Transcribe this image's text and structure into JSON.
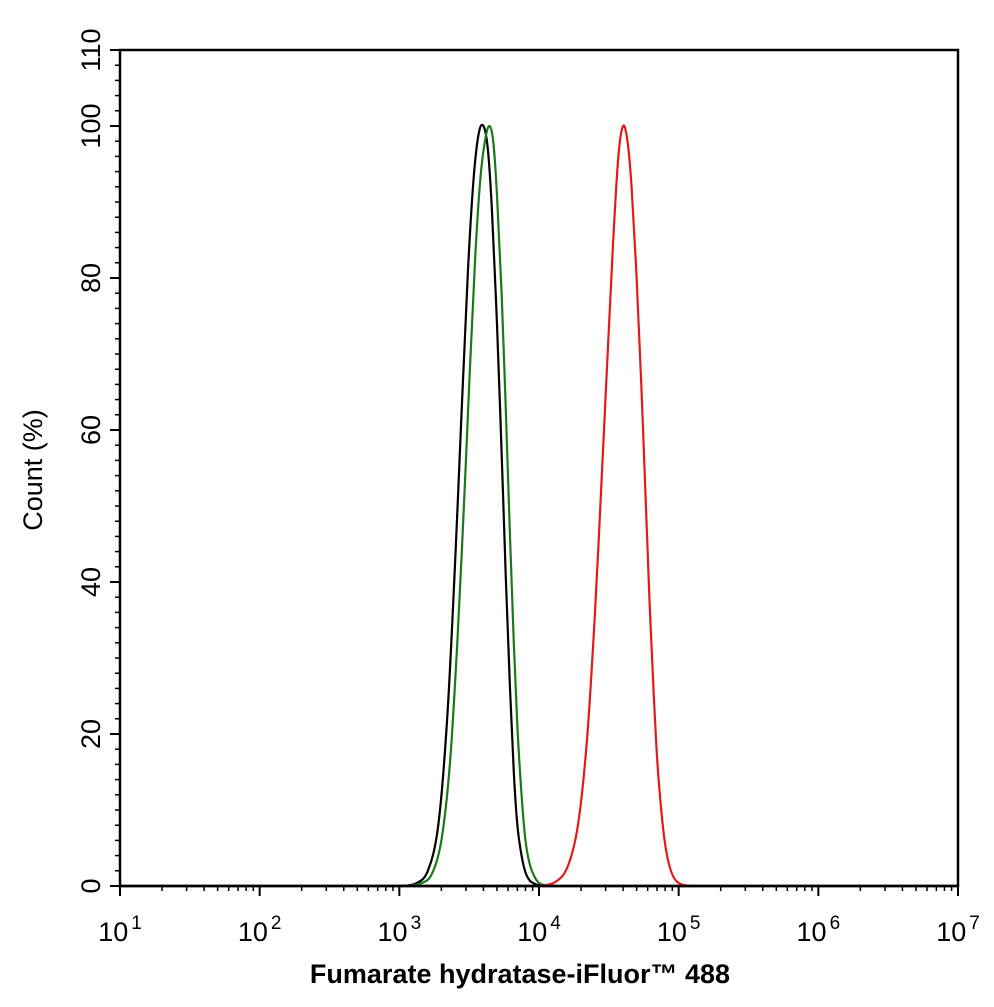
{
  "chart_data": {
    "type": "line",
    "title": "",
    "xlabel": "Fumarate hydratase-iFluor™ 488",
    "ylabel": "Count  (%)",
    "x_scale": "log",
    "xlim": [
      10,
      10000000
    ],
    "ylim": [
      0,
      110
    ],
    "x_tick_labels": [
      {
        "base": "10",
        "exp": "1"
      },
      {
        "base": "10",
        "exp": "2"
      },
      {
        "base": "10",
        "exp": "3"
      },
      {
        "base": "10",
        "exp": "4"
      },
      {
        "base": "10",
        "exp": "5"
      },
      {
        "base": "10",
        "exp": "6"
      },
      {
        "base": "10",
        "exp": "7"
      }
    ],
    "y_ticks": [
      "0",
      "20",
      "40",
      "60",
      "80",
      "100",
      "110"
    ],
    "grid": false,
    "legend": "none",
    "series": [
      {
        "color": "#000000",
        "x": [
          1000,
          1300,
          1600,
          1900,
          2200,
          2500,
          2800,
          3100,
          3400,
          3700,
          4000,
          4300,
          4600,
          5000,
          5400,
          5800,
          6200,
          6600,
          7000,
          7500,
          8000,
          8600,
          9300,
          10000,
          11000
        ],
        "y": [
          0,
          0.3,
          2,
          8,
          22,
          42,
          63,
          81,
          93,
          99,
          100,
          97,
          89,
          74,
          57,
          40,
          26,
          15,
          8,
          4,
          1.8,
          0.7,
          0.3,
          0.1,
          0
        ]
      },
      {
        "color": "#1a7a1a",
        "x": [
          1100,
          1400,
          1700,
          2000,
          2300,
          2600,
          2900,
          3200,
          3500,
          3800,
          4100,
          4400,
          4700,
          5000,
          5400,
          5800,
          6200,
          6600,
          7000,
          7500,
          8000,
          8600,
          9300,
          10000,
          11000,
          12000
        ],
        "y": [
          0,
          0.3,
          1.5,
          6,
          16,
          32,
          50,
          68,
          83,
          93,
          98,
          100,
          98,
          91,
          78,
          62,
          46,
          32,
          21,
          12,
          6,
          2.8,
          1.2,
          0.4,
          0.1,
          0
        ]
      },
      {
        "color": "#e31a1c",
        "x": [
          10000,
          13000,
          16000,
          19000,
          22000,
          25000,
          28000,
          31000,
          34000,
          37000,
          40000,
          43000,
          46000,
          50000,
          54000,
          58000,
          62000,
          66000,
          70000,
          75000,
          80000,
          86000,
          93000,
          100000,
          110000,
          130000
        ],
        "y": [
          0,
          0.5,
          2.5,
          8,
          19,
          35,
          53,
          70,
          85,
          96,
          100,
          98,
          92,
          80,
          66,
          51,
          37,
          26,
          17,
          10,
          5.5,
          2.6,
          1,
          0.4,
          0.1,
          0
        ]
      }
    ]
  }
}
